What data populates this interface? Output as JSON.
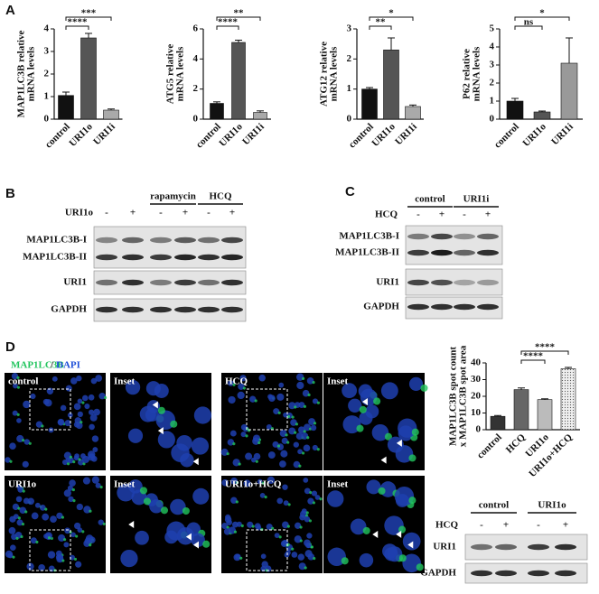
{
  "panel_labels": [
    "A",
    "B",
    "C",
    "D"
  ],
  "chart_data": [
    {
      "type": "bar",
      "ylabel": [
        "MAP1LC3B relative",
        "mRNA levels"
      ],
      "categories": [
        "control",
        "URI1o",
        "URI1i"
      ],
      "values": [
        1.05,
        3.6,
        0.4
      ],
      "errors": [
        0.15,
        0.2,
        0.05
      ],
      "colors": [
        "#111111",
        "#555555",
        "#aaaaaa"
      ],
      "ylim": [
        0,
        4
      ],
      "yticks": [
        0,
        1,
        2,
        3,
        4
      ],
      "significance": [
        {
          "label": "****",
          "between": [
            0,
            1
          ]
        },
        {
          "label": "***",
          "between": [
            0,
            2
          ]
        }
      ]
    },
    {
      "type": "bar",
      "ylabel": [
        "ATG5 relative",
        "mRNA levels"
      ],
      "categories": [
        "control",
        "URI1o",
        "URI1i"
      ],
      "values": [
        1.05,
        5.1,
        0.45
      ],
      "errors": [
        0.1,
        0.15,
        0.1
      ],
      "colors": [
        "#111111",
        "#555555",
        "#aaaaaa"
      ],
      "ylim": [
        0,
        6
      ],
      "yticks": [
        0,
        2,
        4,
        6
      ],
      "significance": [
        {
          "label": "****",
          "between": [
            0,
            1
          ]
        },
        {
          "label": "**",
          "between": [
            0,
            2
          ]
        }
      ]
    },
    {
      "type": "bar",
      "ylabel": [
        "ATG12 relative",
        "mRNA levels"
      ],
      "categories": [
        "control",
        "URI1o",
        "URI1i"
      ],
      "values": [
        1.0,
        2.3,
        0.42
      ],
      "errors": [
        0.05,
        0.4,
        0.05
      ],
      "colors": [
        "#111111",
        "#555555",
        "#aaaaaa"
      ],
      "ylim": [
        0,
        3
      ],
      "yticks": [
        0,
        1,
        2,
        3
      ],
      "significance": [
        {
          "label": "**",
          "between": [
            0,
            1
          ]
        },
        {
          "label": "*",
          "between": [
            0,
            2
          ]
        }
      ]
    },
    {
      "type": "bar",
      "ylabel": [
        "P62 relative",
        "mRNA levels"
      ],
      "categories": [
        "control",
        "URI1o",
        "URI1i"
      ],
      "values": [
        1.0,
        0.4,
        3.1
      ],
      "errors": [
        0.15,
        0.05,
        1.4
      ],
      "colors": [
        "#111111",
        "#555555",
        "#999999"
      ],
      "ylim": [
        0,
        5
      ],
      "yticks": [
        0,
        1,
        2,
        3,
        4,
        5
      ],
      "significance": [
        {
          "label": "ns",
          "between": [
            0,
            1
          ]
        },
        {
          "label": "*",
          "between": [
            0,
            2
          ]
        }
      ]
    },
    {
      "type": "bar",
      "ylabel": [
        "MAP1LC3B spot count",
        "x MAP1LC3B spot area"
      ],
      "categories": [
        "control",
        "HCQ",
        "URI1o",
        "URI1o+HCQ"
      ],
      "values": [
        8,
        24,
        18,
        36.5
      ],
      "errors": [
        0.5,
        1,
        0.5,
        0.8
      ],
      "colors": [
        "#333333",
        "#666666",
        "#bbbbbb",
        "#dddddd"
      ],
      "ylim": [
        0,
        40
      ],
      "yticks": [
        0,
        10,
        20,
        30,
        40
      ],
      "significance": [
        {
          "label": "****",
          "between": [
            1,
            2
          ]
        },
        {
          "label": "****",
          "between": [
            1,
            3
          ]
        }
      ]
    }
  ],
  "blot_b": {
    "treatment_label": "URI1o",
    "signs": [
      "-",
      "+",
      "-",
      "+",
      "-",
      "+"
    ],
    "groups": [
      "rapamycin",
      "HCQ"
    ],
    "rows": [
      "MAP1LC3B-I",
      "MAP1LC3B-II",
      "URI1",
      "GAPDH"
    ]
  },
  "blot_c": {
    "treatment_label": "HCQ",
    "signs": [
      "-",
      "+",
      "-",
      "+"
    ],
    "groups": [
      "control",
      "URI1i"
    ],
    "rows": [
      "MAP1LC3B-I",
      "MAP1LC3B-II",
      "URI1",
      "GAPDH"
    ]
  },
  "figure_d": {
    "stain": [
      "MAP1LC3B",
      "/",
      "DAPI"
    ],
    "images": [
      {
        "label": "control"
      },
      {
        "label": "Inset"
      },
      {
        "label": "HCQ"
      },
      {
        "label": "Inset"
      },
      {
        "label": "URI1o"
      },
      {
        "label": "Inset"
      },
      {
        "label": "URI1o+HCQ"
      },
      {
        "label": "Inset"
      }
    ]
  },
  "blot_d": {
    "treatment_label": "HCQ",
    "signs": [
      "-",
      "+",
      "-",
      "+"
    ],
    "groups": [
      "control",
      "URI1o"
    ],
    "rows": [
      "URI1",
      "GAPDH"
    ]
  }
}
